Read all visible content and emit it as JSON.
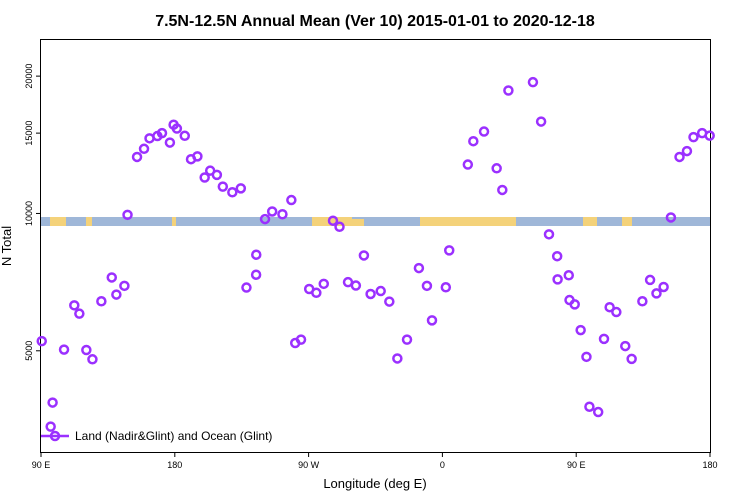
{
  "chart_data": {
    "type": "scatter",
    "title": "7.5N-12.5N Annual Mean (Ver 10)   2015-01-01 to 2020-12-18",
    "xlabel": "Longitude (deg E)",
    "ylabel": "N Total",
    "x_tick_labels": [
      "90 E",
      "180",
      "90 W",
      "0",
      "90 E",
      "180"
    ],
    "x_tick_values": [
      90,
      180,
      270,
      360,
      450,
      540
    ],
    "xlim": [
      90,
      540
    ],
    "y_scale": "log",
    "y_tick_labels": [
      "5000",
      "10000",
      "15000",
      "20000"
    ],
    "y_tick_values": [
      5000,
      10000,
      15000,
      20000
    ],
    "ylim": [
      3000,
      24000
    ],
    "grid": false,
    "legend_position": "bottom-left",
    "colors": {
      "marker": "#9b30ff",
      "ocean_band": "#9fb7d8",
      "land_band": "#f4d27a"
    },
    "series": [
      {
        "name": "Land (Nadir&Glint) and Ocean (Glint)",
        "points": [
          [
            90.5,
            5250
          ],
          [
            97.8,
            3850
          ],
          [
            96.5,
            3410
          ],
          [
            105.5,
            5030
          ],
          [
            112.4,
            6290
          ],
          [
            115.8,
            6030
          ],
          [
            120.5,
            5020
          ],
          [
            124.6,
            4790
          ],
          [
            130.6,
            6420
          ],
          [
            137.6,
            7240
          ],
          [
            140.7,
            6640
          ],
          [
            146.1,
            6940
          ],
          [
            148.2,
            9930
          ],
          [
            154.6,
            13300
          ],
          [
            159.3,
            13860
          ],
          [
            163.0,
            14610
          ],
          [
            168.3,
            14780
          ],
          [
            171.4,
            15000
          ],
          [
            176.7,
            14300
          ],
          [
            179.2,
            15650
          ],
          [
            181.4,
            15350
          ],
          [
            186.7,
            14800
          ],
          [
            190.9,
            13150
          ],
          [
            195.2,
            13340
          ],
          [
            200.1,
            11990
          ],
          [
            203.8,
            12410
          ],
          [
            208.3,
            12150
          ],
          [
            212.3,
            11450
          ],
          [
            218.7,
            11130
          ],
          [
            224.4,
            11350
          ],
          [
            228.2,
            6880
          ],
          [
            234.7,
            7340
          ],
          [
            234.8,
            8120
          ],
          [
            240.7,
            9720
          ],
          [
            245.5,
            10100
          ],
          [
            252.4,
            9960
          ],
          [
            258.4,
            10700
          ],
          [
            261.0,
            5200
          ],
          [
            264.9,
            5290
          ],
          [
            270.4,
            6830
          ],
          [
            275.2,
            6700
          ],
          [
            280.2,
            7010
          ],
          [
            286.4,
            9640
          ],
          [
            290.8,
            9350
          ],
          [
            296.5,
            7070
          ],
          [
            301.8,
            6950
          ],
          [
            307.2,
            8090
          ],
          [
            311.7,
            6660
          ],
          [
            318.5,
            6760
          ],
          [
            324.3,
            6410
          ],
          [
            329.7,
            4810
          ],
          [
            336.2,
            5290
          ],
          [
            344.2,
            7590
          ],
          [
            349.6,
            6940
          ],
          [
            353.0,
            5830
          ],
          [
            362.3,
            6890
          ],
          [
            364.6,
            8300
          ],
          [
            377.1,
            12800
          ],
          [
            380.8,
            14400
          ],
          [
            388.0,
            15120
          ],
          [
            396.5,
            12560
          ],
          [
            400.3,
            11260
          ],
          [
            404.4,
            18600
          ],
          [
            420.9,
            19400
          ],
          [
            426.4,
            15900
          ],
          [
            431.7,
            9000
          ],
          [
            437.2,
            8060
          ],
          [
            437.5,
            7170
          ],
          [
            445.0,
            7320
          ],
          [
            445.5,
            6460
          ],
          [
            449.0,
            6320
          ],
          [
            453.0,
            5550
          ],
          [
            456.9,
            4850
          ],
          [
            458.9,
            3770
          ],
          [
            464.8,
            3670
          ],
          [
            468.7,
            5310
          ],
          [
            472.5,
            6230
          ],
          [
            477.0,
            6080
          ],
          [
            483.0,
            5120
          ],
          [
            487.3,
            4800
          ],
          [
            494.5,
            6420
          ],
          [
            499.7,
            7150
          ],
          [
            504.0,
            6680
          ],
          [
            508.8,
            6900
          ],
          [
            513.7,
            9800
          ],
          [
            519.5,
            13300
          ],
          [
            524.5,
            13700
          ],
          [
            528.9,
            14700
          ],
          [
            534.7,
            15000
          ],
          [
            539.8,
            14810
          ]
        ]
      }
    ]
  }
}
